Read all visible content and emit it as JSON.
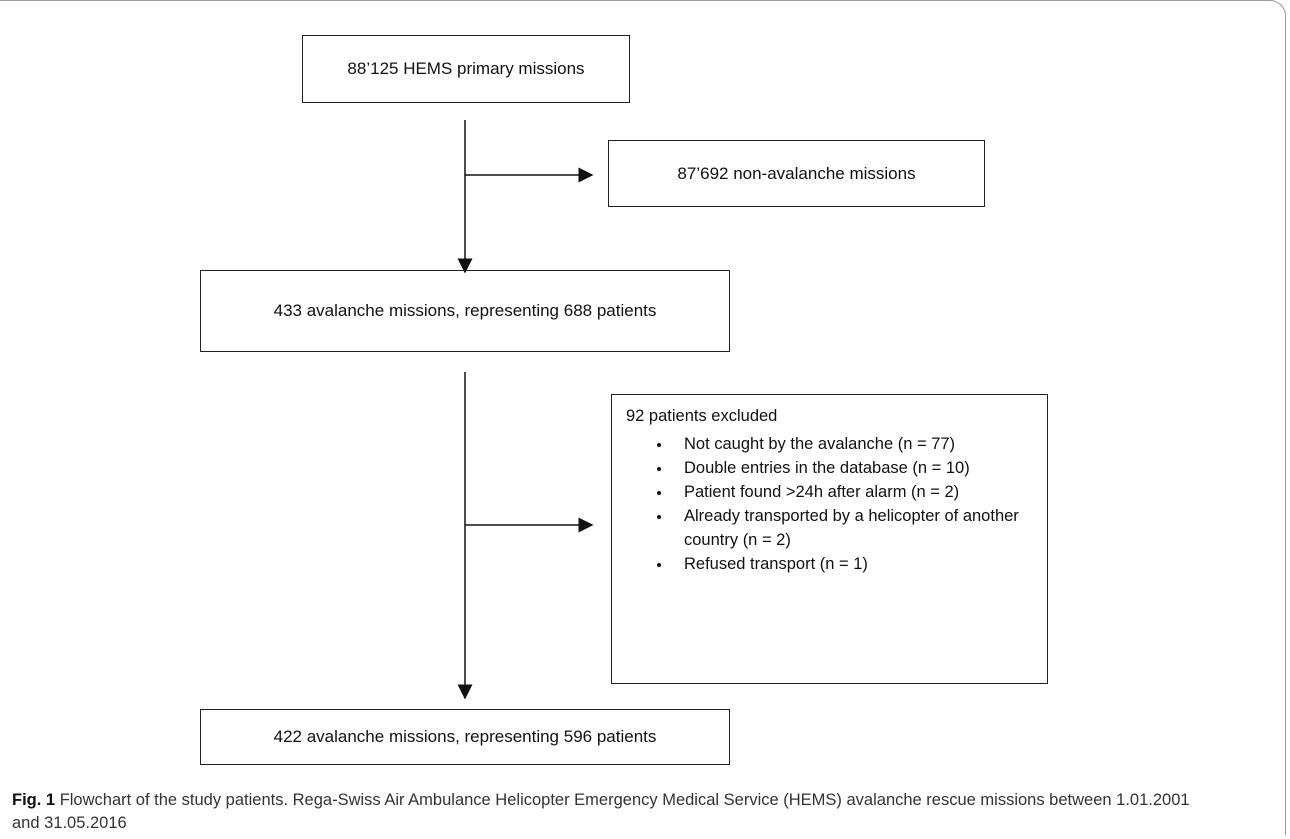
{
  "nodes": [
    {
      "label": "88’125 HEMS primary missions"
    },
    {
      "label": "87’692 non-avalanche missions"
    },
    {
      "label": "433 avalanche missions, representing 688 patients"
    },
    {
      "title": "92 patients excluded",
      "items": [
        "Not caught by the avalanche (n = 77)",
        "Double entries in the database (n = 10)",
        "Patient found >24h after alarm (n = 2)",
        "Already transported by a helicopter of another country (n = 2)",
        "Refused transport (n = 1)"
      ]
    },
    {
      "label": "422 avalanche missions, representing 596 patients"
    }
  ],
  "caption": {
    "label": "Fig. 1",
    "text": "Flowchart of the study patients. Rega-Swiss Air Ambulance Helicopter Emergency Medical Service (HEMS) avalanche rescue missions between 1.01.2001 and 31.05.2016"
  }
}
